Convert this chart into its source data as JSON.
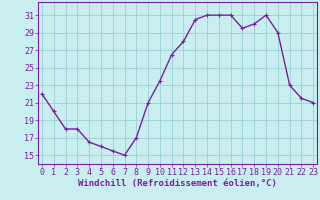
{
  "x": [
    0,
    1,
    2,
    3,
    4,
    5,
    6,
    7,
    8,
    9,
    10,
    11,
    12,
    13,
    14,
    15,
    16,
    17,
    18,
    19,
    20,
    21,
    22,
    23
  ],
  "y": [
    22,
    20,
    18,
    18,
    16.5,
    16,
    15.5,
    15,
    17,
    21,
    23.5,
    26.5,
    28,
    30.5,
    31,
    31,
    31,
    29.5,
    30,
    31,
    29,
    23,
    21.5,
    21
  ],
  "line_color": "#7b1fa2",
  "marker": "+",
  "marker_color": "#7b1fa2",
  "bg_color": "#c8eef0",
  "grid_color": "#a0d4d8",
  "xlabel": "Windchill (Refroidissement éolien,°C)",
  "yticks": [
    15,
    17,
    19,
    21,
    23,
    25,
    27,
    29,
    31
  ],
  "xticks": [
    0,
    1,
    2,
    3,
    4,
    5,
    6,
    7,
    8,
    9,
    10,
    11,
    12,
    13,
    14,
    15,
    16,
    17,
    18,
    19,
    20,
    21,
    22,
    23
  ],
  "ylim": [
    14.0,
    32.5
  ],
  "xlim": [
    -0.3,
    23.3
  ],
  "xlabel_fontsize": 6.5,
  "tick_fontsize": 6,
  "tick_color": "#7b1fa2",
  "spine_color": "#7b1fa2",
  "line_width": 1.0,
  "marker_size": 3
}
